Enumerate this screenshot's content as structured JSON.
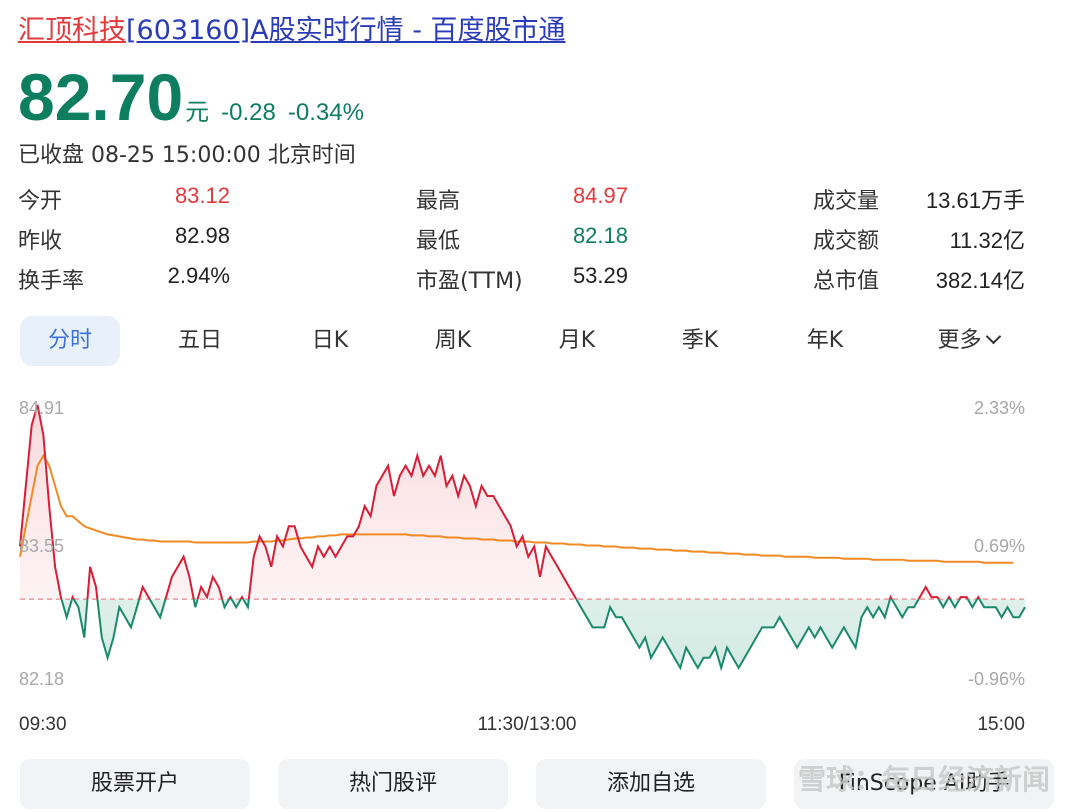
{
  "header": {
    "name": "汇顶科技",
    "rest": "[603160]A股实时行情 - 百度股市通"
  },
  "quote": {
    "price": "82.70",
    "unit": "元",
    "change": "-0.28",
    "change_pct": "-0.34%",
    "status": "已收盘 08-25 15:00:00 北京时间"
  },
  "stats": [
    {
      "label": "今开",
      "value": "83.12",
      "color": "#e4393c"
    },
    {
      "label": "昨收",
      "value": "82.98",
      "color": "#222222"
    },
    {
      "label": "换手率",
      "value": "2.94%",
      "color": "#222222"
    },
    {
      "label": "最高",
      "value": "84.97",
      "color": "#e4393c"
    },
    {
      "label": "最低",
      "value": "82.18",
      "color": "#0e7e61"
    },
    {
      "label": "市盈(TTM)",
      "value": "53.29",
      "color": "#222222"
    },
    {
      "label": "成交量",
      "value": "13.61万手",
      "color": "#222222"
    },
    {
      "label": "成交额",
      "value": "11.32亿",
      "color": "#222222"
    },
    {
      "label": "总市值",
      "value": "382.14亿",
      "color": "#222222"
    }
  ],
  "tabs": [
    "分时",
    "五日",
    "日K",
    "周K",
    "月K",
    "季K",
    "年K",
    "更多"
  ],
  "active_tab": "分时",
  "chart_data": {
    "type": "line",
    "prev_close": 82.98,
    "ylim": [
      82.18,
      84.91
    ],
    "y_ticks_left": [
      "84.91",
      "83.55",
      "82.18"
    ],
    "y_ticks_right": [
      "2.33%",
      "0.69%",
      "-0.96%"
    ],
    "x_ticks": [
      "09:30",
      "11:30/13:00",
      "15:00"
    ],
    "series": [
      {
        "values": [
          83.5,
          84.1,
          84.7,
          84.9,
          84.6,
          83.9,
          83.3,
          83.0,
          82.8,
          83.0,
          82.9,
          82.6,
          83.3,
          83.1,
          82.6,
          82.4,
          82.6,
          82.9,
          82.8,
          82.7,
          82.9,
          83.1,
          83.0,
          82.9,
          82.8,
          83.0,
          83.2,
          83.3,
          83.4,
          83.2,
          82.9,
          83.1,
          83.0,
          83.2,
          83.1,
          82.9,
          83.0,
          82.9,
          83.0,
          82.9,
          83.4,
          83.6,
          83.5,
          83.3,
          83.6,
          83.5,
          83.7,
          83.7,
          83.5,
          83.4,
          83.3,
          83.5,
          83.4,
          83.5,
          83.4,
          83.5,
          83.6,
          83.6,
          83.7,
          83.9,
          83.8,
          84.1,
          84.2,
          84.3,
          84.0,
          84.2,
          84.3,
          84.2,
          84.4,
          84.2,
          84.3,
          84.2,
          84.4,
          84.1,
          84.2,
          84.0,
          84.2,
          84.1,
          83.9,
          84.1,
          84.0,
          84.0,
          83.9,
          83.8,
          83.7,
          83.5,
          83.6,
          83.4,
          83.5,
          83.2,
          83.5,
          83.4,
          83.3,
          83.2,
          83.1,
          83.0,
          82.9,
          82.8,
          82.7,
          82.7,
          82.7,
          82.9,
          82.8,
          82.8,
          82.7,
          82.6,
          82.5,
          82.6,
          82.4,
          82.5,
          82.6,
          82.5,
          82.4,
          82.3,
          82.5,
          82.4,
          82.3,
          82.4,
          82.4,
          82.5,
          82.3,
          82.5,
          82.4,
          82.3,
          82.4,
          82.5,
          82.6,
          82.7,
          82.7,
          82.7,
          82.8,
          82.7,
          82.6,
          82.5,
          82.6,
          82.7,
          82.6,
          82.7,
          82.6,
          82.5,
          82.6,
          82.7,
          82.6,
          82.5,
          82.8,
          82.9,
          82.8,
          82.9,
          82.8,
          83.0,
          82.9,
          82.8,
          82.9,
          82.9,
          83.0,
          83.1,
          83.0,
          83.0,
          82.9,
          83.0,
          82.9,
          83.0,
          83.0,
          82.9,
          83.0,
          82.9,
          82.9,
          82.9,
          82.8,
          82.9,
          82.8,
          82.8,
          82.9
        ],
        "avg_values": [
          83.4,
          83.7,
          84.0,
          84.3,
          84.4,
          84.3,
          84.1,
          83.9,
          83.8,
          83.8,
          83.75,
          83.7,
          83.68,
          83.66,
          83.64,
          83.62,
          83.61,
          83.6,
          83.59,
          83.58,
          83.57,
          83.57,
          83.56,
          83.56,
          83.55,
          83.55,
          83.55,
          83.55,
          83.55,
          83.55,
          83.54,
          83.54,
          83.54,
          83.54,
          83.54,
          83.54,
          83.54,
          83.54,
          83.54,
          83.54,
          83.55,
          83.55,
          83.55,
          83.55,
          83.56,
          83.56,
          83.57,
          83.58,
          83.58,
          83.59,
          83.59,
          83.6,
          83.6,
          83.61,
          83.61,
          83.62,
          83.62,
          83.62,
          83.62,
          83.62,
          83.62,
          83.62,
          83.62,
          83.62,
          83.62,
          83.62,
          83.62,
          83.61,
          83.61,
          83.61,
          83.6,
          83.6,
          83.6,
          83.59,
          83.59,
          83.59,
          83.58,
          83.58,
          83.58,
          83.57,
          83.57,
          83.57,
          83.56,
          83.56,
          83.56,
          83.55,
          83.55,
          83.55,
          83.54,
          83.54,
          83.54,
          83.53,
          83.53,
          83.53,
          83.52,
          83.52,
          83.52,
          83.51,
          83.51,
          83.51,
          83.5,
          83.5,
          83.5,
          83.49,
          83.49,
          83.49,
          83.48,
          83.48,
          83.48,
          83.47,
          83.47,
          83.47,
          83.46,
          83.46,
          83.46,
          83.45,
          83.45,
          83.45,
          83.44,
          83.44,
          83.44,
          83.43,
          83.43,
          83.43,
          83.42,
          83.42,
          83.42,
          83.41,
          83.41,
          83.41,
          83.41,
          83.4,
          83.4,
          83.4,
          83.4,
          83.4,
          83.39,
          83.39,
          83.39,
          83.39,
          83.39,
          83.38,
          83.38,
          83.38,
          83.38,
          83.38,
          83.37,
          83.37,
          83.37,
          83.37,
          83.37,
          83.37,
          83.36,
          83.36,
          83.36,
          83.36,
          83.36,
          83.36,
          83.35,
          83.35,
          83.35,
          83.35,
          83.35,
          83.35,
          83.35,
          83.34,
          83.34,
          83.34,
          83.34,
          83.34,
          83.34
        ]
      }
    ],
    "colors": {
      "up": "#d81e36",
      "down": "#1b8a6b",
      "avg": "#f08a24",
      "baseline": "#e99a9a"
    },
    "grid": false
  },
  "buttons": [
    "股票开户",
    "热门股评",
    "添加自选",
    "FinScope AI助手"
  ],
  "watermark": "雪球：每日经济新闻"
}
